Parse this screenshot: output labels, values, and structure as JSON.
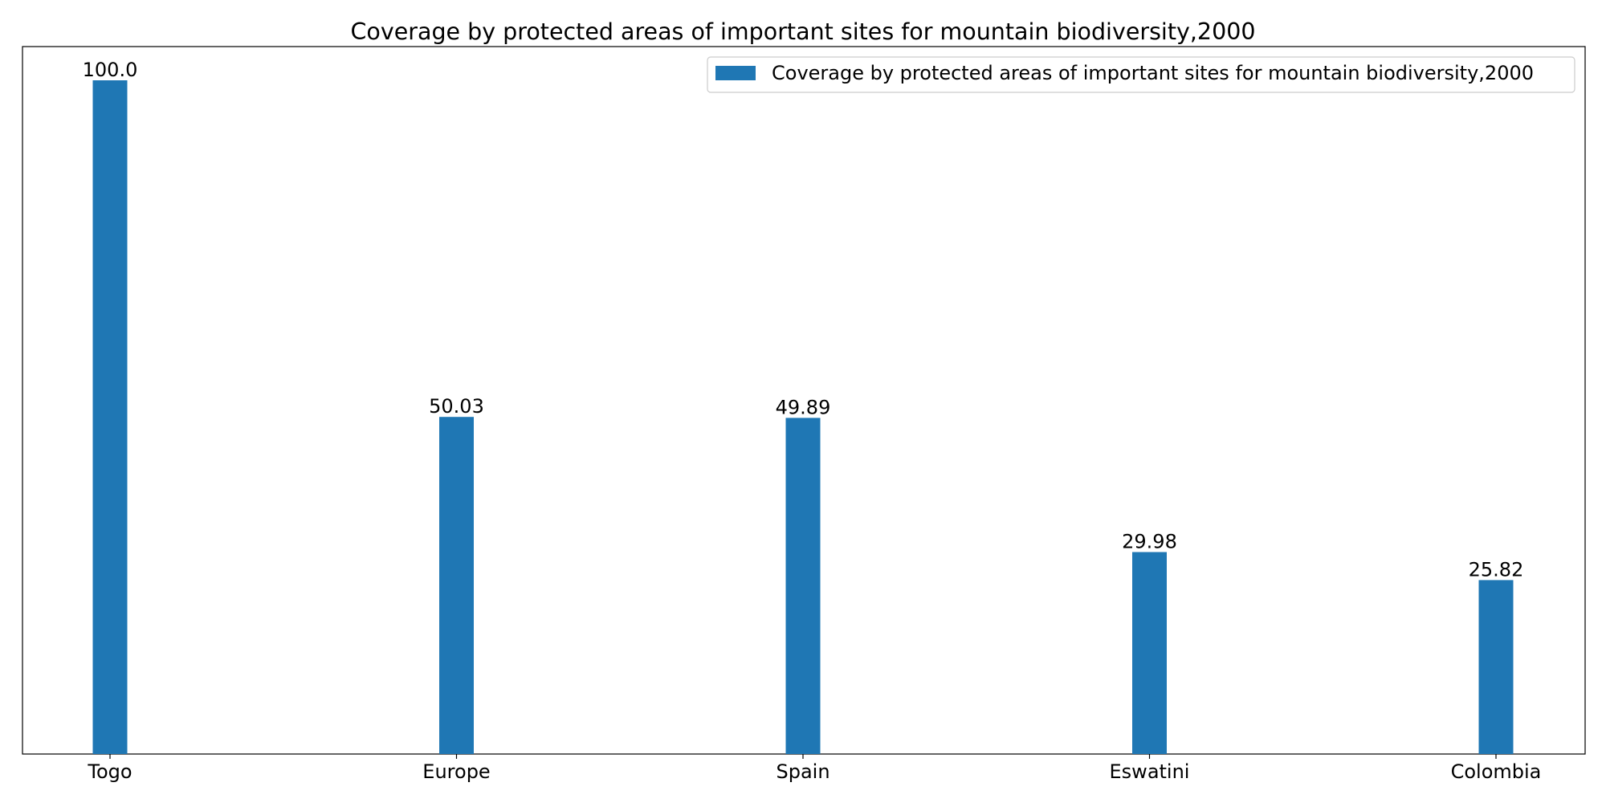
{
  "chart_data": {
    "type": "bar",
    "title": "Coverage by protected areas of important sites for mountain biodiversity,2000",
    "categories": [
      "Togo",
      "Europe",
      "Spain",
      "Eswatini",
      "Colombia"
    ],
    "series": [
      {
        "name": "Coverage by protected areas of important sites for mountain biodiversity,2000",
        "values": [
          100.0,
          50.03,
          49.89,
          29.98,
          25.82
        ],
        "value_labels": [
          "100.0",
          "50.03",
          "49.89",
          "29.98",
          "25.82"
        ],
        "color": "#1f77b4"
      }
    ],
    "xlabel": "",
    "ylabel": "",
    "ylim": [
      0,
      105
    ],
    "y_axis_visible": false,
    "grid": false,
    "legend_position": "top-right"
  }
}
